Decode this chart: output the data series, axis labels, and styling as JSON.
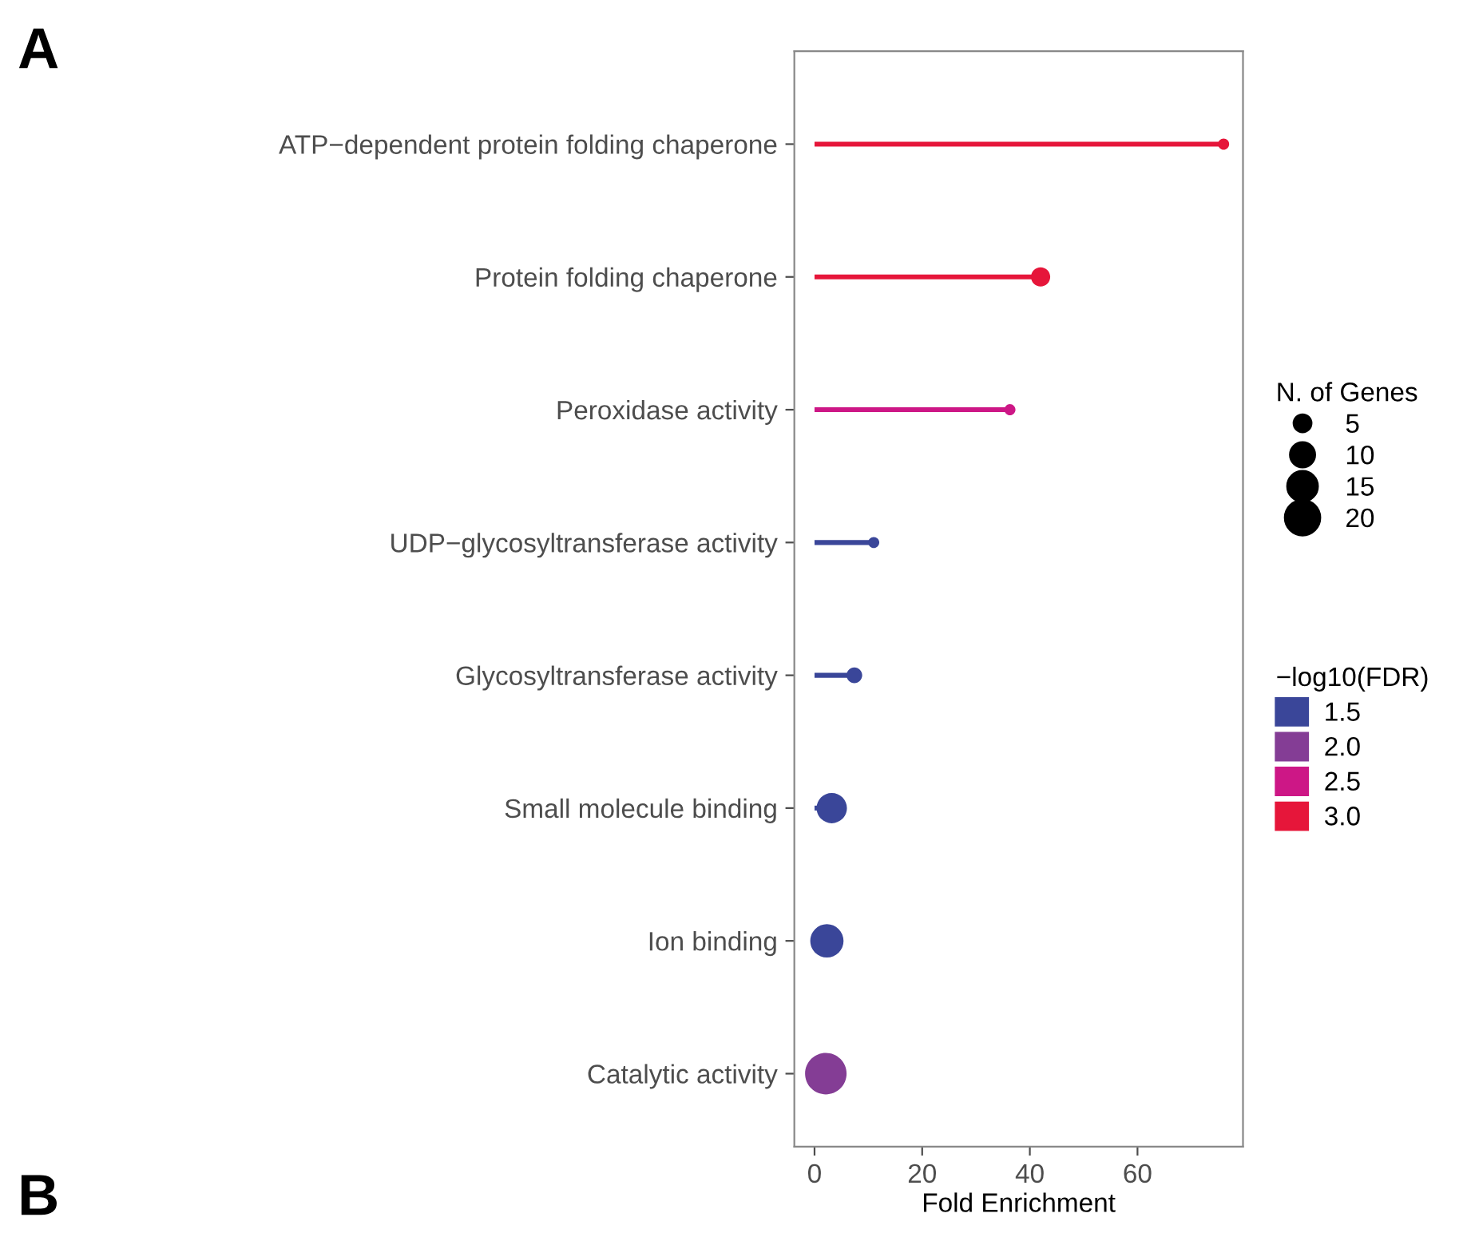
{
  "chart_data": {
    "type": "lollipop",
    "orientation": "horizontal",
    "categories": [
      "ATP−dependent protein folding chaperone",
      "Protein folding chaperone",
      "Peroxidase activity",
      "UDP−glycosyltransferase activity",
      "Glycosyltransferase activity",
      "Small molecule binding",
      "Ion binding",
      "Catalytic activity"
    ],
    "series": [
      {
        "name": "1.5",
        "color": "#3a4699",
        "values": [
          null,
          null,
          null,
          11,
          7.4,
          3.2,
          2.3,
          null
        ],
        "sizes": [
          null,
          null,
          null,
          2,
          4,
          15,
          18,
          null
        ]
      },
      {
        "name": "2.0",
        "color": "#843d95",
        "values": [
          null,
          null,
          null,
          null,
          null,
          null,
          null,
          2.1
        ],
        "sizes": [
          null,
          null,
          null,
          null,
          null,
          null,
          null,
          28
        ]
      },
      {
        "name": "2.5",
        "color": "#cd1786",
        "values": [
          null,
          null,
          36.3,
          null,
          null,
          null,
          null,
          null
        ],
        "sizes": [
          null,
          null,
          2,
          null,
          null,
          null,
          null,
          null
        ]
      },
      {
        "name": "3.0",
        "color": "#e6163a",
        "values": [
          76,
          42,
          null,
          null,
          null,
          null,
          null,
          null
        ],
        "sizes": [
          2,
          6,
          null,
          null,
          null,
          null,
          null,
          null
        ]
      }
    ],
    "size_legend": [
      5,
      10,
      15,
      20
    ],
    "legend_title": "−log10(FDR)",
    "legend": "right",
    "xlabel": "Fold Enrichment",
    "xlim": [
      -3.75,
      79.6
    ],
    "xticks": [
      0,
      20,
      40,
      60
    ],
    "grid": false,
    "annotations": [
      "A",
      "B",
      "N. of Genes"
    ]
  }
}
